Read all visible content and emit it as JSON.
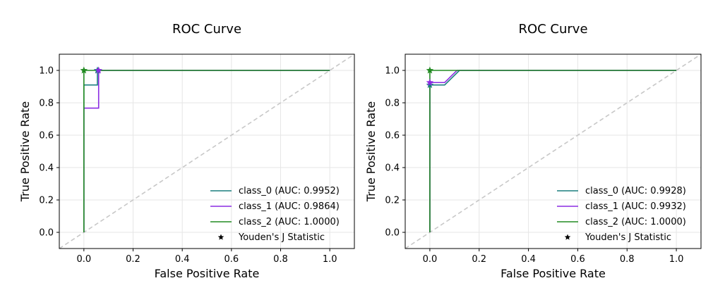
{
  "chart_data": [
    {
      "type": "line",
      "title": "ROC Curve",
      "xlabel": "False Positive Rate",
      "ylabel": "True Positive Rate",
      "xlim": [
        -0.1,
        1.1
      ],
      "ylim": [
        -0.1,
        1.1
      ],
      "xticks": [
        "0.0",
        "0.2",
        "0.4",
        "0.6",
        "0.8",
        "1.0"
      ],
      "yticks": [
        "0.0",
        "0.2",
        "0.4",
        "0.6",
        "0.8",
        "1.0"
      ],
      "grid": true,
      "legend_position": "lower-right",
      "series": [
        {
          "name": "class_0 (AUC: 0.9952)",
          "color": "#1a7f7f",
          "x": [
            0,
            0,
            0.0,
            0.055,
            0.055,
            0.06,
            1.0
          ],
          "y": [
            0,
            0.91,
            0.91,
            0.91,
            1.0,
            1.0,
            1.0
          ],
          "youden": [
            0.055,
            1.0
          ]
        },
        {
          "name": "class_1 (AUC: 0.9864)",
          "color": "#8a2be2",
          "x": [
            0,
            0,
            0.0,
            0.06,
            0.06,
            1.0
          ],
          "y": [
            0,
            0.767,
            0.767,
            0.767,
            1.0,
            1.0
          ],
          "youden": [
            0.06,
            1.0
          ]
        },
        {
          "name": "class_2 (AUC: 1.0000)",
          "color": "#228b22",
          "x": [
            0,
            0,
            1.0
          ],
          "y": [
            0,
            1.0,
            1.0
          ],
          "youden": [
            0.0,
            1.0
          ]
        }
      ],
      "marker_legend": "Youden's J Statistic",
      "diagonal_color": "#c8c8c8"
    },
    {
      "type": "line",
      "title": "ROC Curve",
      "xlabel": "False Positive Rate",
      "ylabel": "True Positive Rate",
      "xlim": [
        -0.1,
        1.1
      ],
      "ylim": [
        -0.1,
        1.1
      ],
      "xticks": [
        "0.0",
        "0.2",
        "0.4",
        "0.6",
        "0.8",
        "1.0"
      ],
      "yticks": [
        "0.0",
        "0.2",
        "0.4",
        "0.6",
        "0.8",
        "1.0"
      ],
      "grid": true,
      "legend_position": "lower-right",
      "series": [
        {
          "name": "class_0 (AUC: 0.9928)",
          "color": "#1a7f7f",
          "x": [
            0,
            0,
            0.0,
            0.06,
            0.12,
            1.0
          ],
          "y": [
            0,
            0.91,
            0.91,
            0.91,
            1.0,
            1.0
          ],
          "youden": [
            0.0,
            0.91
          ]
        },
        {
          "name": "class_1 (AUC: 0.9932)",
          "color": "#8a2be2",
          "x": [
            0,
            0,
            0.0,
            0.06,
            0.11,
            1.0
          ],
          "y": [
            0,
            0.925,
            0.925,
            0.925,
            1.0,
            1.0
          ],
          "youden": [
            0.0,
            0.925
          ]
        },
        {
          "name": "class_2 (AUC: 1.0000)",
          "color": "#228b22",
          "x": [
            0,
            0,
            1.0
          ],
          "y": [
            0,
            1.0,
            1.0
          ],
          "youden": [
            0.0,
            1.0
          ]
        }
      ],
      "marker_legend": "Youden's J Statistic",
      "diagonal_color": "#c8c8c8"
    }
  ]
}
